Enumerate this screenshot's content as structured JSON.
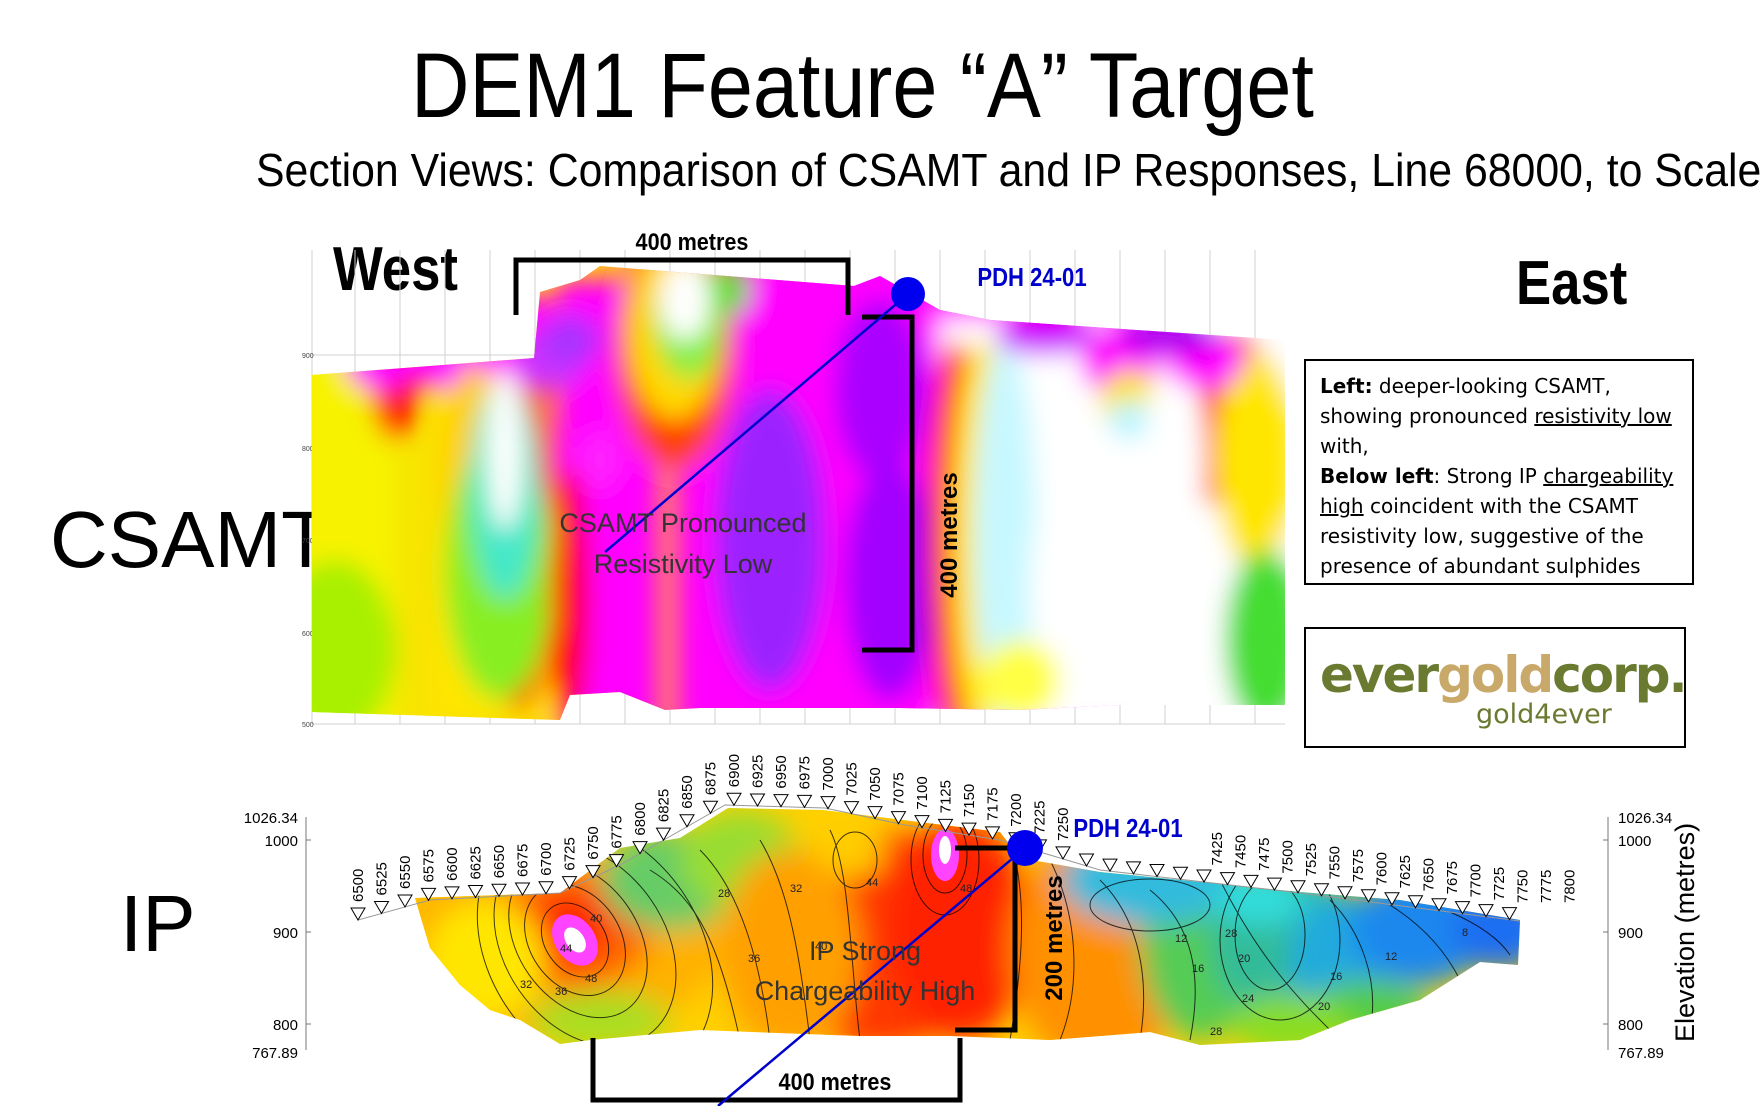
{
  "title": "DEM1 Feature “A” Target",
  "subtitle": "Section Views: Comparison of CSAMT and IP Responses, Line 68000, to Scale",
  "west_label": "West",
  "east_label": "East",
  "csamt_label": "CSAMT",
  "ip_label": "IP",
  "scale_top": "400 metres",
  "scale_vertical": "400 metres",
  "scale_ip_vertical": "200 metres",
  "scale_bottom": "400 metres",
  "drillhole": "PDH 24-01",
  "csamt_anomaly_line1": "CSAMT Pronounced",
  "csamt_anomaly_line2": "Resistivity Low",
  "ip_anomaly_line1": "IP Strong",
  "ip_anomaly_line2": "Chargeability High",
  "csamt_elev_ticks": [
    "900",
    "800",
    "700",
    "600",
    "500"
  ],
  "note": {
    "left_bold": "Left:",
    "text1": " deeper-looking CSAMT, showing pronounced ",
    "u1": "resistivity low",
    "text2": " with,",
    "below_bold": "Below left",
    "text3": ": Strong IP ",
    "u2": "chargeability high",
    "text4": " coincident with the CSAMT resistivity low, suggestive of the presence of abundant sulphides"
  },
  "logo": {
    "ever": "ever",
    "gold": "gold",
    "corp": "corp.",
    "tagline": "gold4ever"
  },
  "ip_axis": {
    "top": "1026.34",
    "t1000": "1000",
    "t900": "900",
    "t800": "800",
    "bottom": "767.89",
    "ylabel": "Elevation (metres)"
  },
  "stations": [
    "6500",
    "6525",
    "6550",
    "6575",
    "6600",
    "6625",
    "6650",
    "6675",
    "6700",
    "6725",
    "6750",
    "6775",
    "6800",
    "6825",
    "6850",
    "6875",
    "6900",
    "6925",
    "6950",
    "6975",
    "7000",
    "7025",
    "7050",
    "7075",
    "7100",
    "7125",
    "7150",
    "7175",
    "7200",
    "7225",
    "7250",
    "7425",
    "7450",
    "7475",
    "7500",
    "7525",
    "7550",
    "7575",
    "7600",
    "7625",
    "7650",
    "7675",
    "7700",
    "7725",
    "7750",
    "7775",
    "7800"
  ],
  "contour_labels": [
    "48",
    "44",
    "40",
    "36",
    "32",
    "28",
    "36",
    "40",
    "32",
    "28",
    "44",
    "48",
    "12",
    "16",
    "20",
    "24",
    "28",
    "16",
    "12",
    "8",
    "20"
  ],
  "colors": {
    "drillhole": "#0000cc",
    "blue_text": "#0000cc",
    "box": "#000000"
  }
}
